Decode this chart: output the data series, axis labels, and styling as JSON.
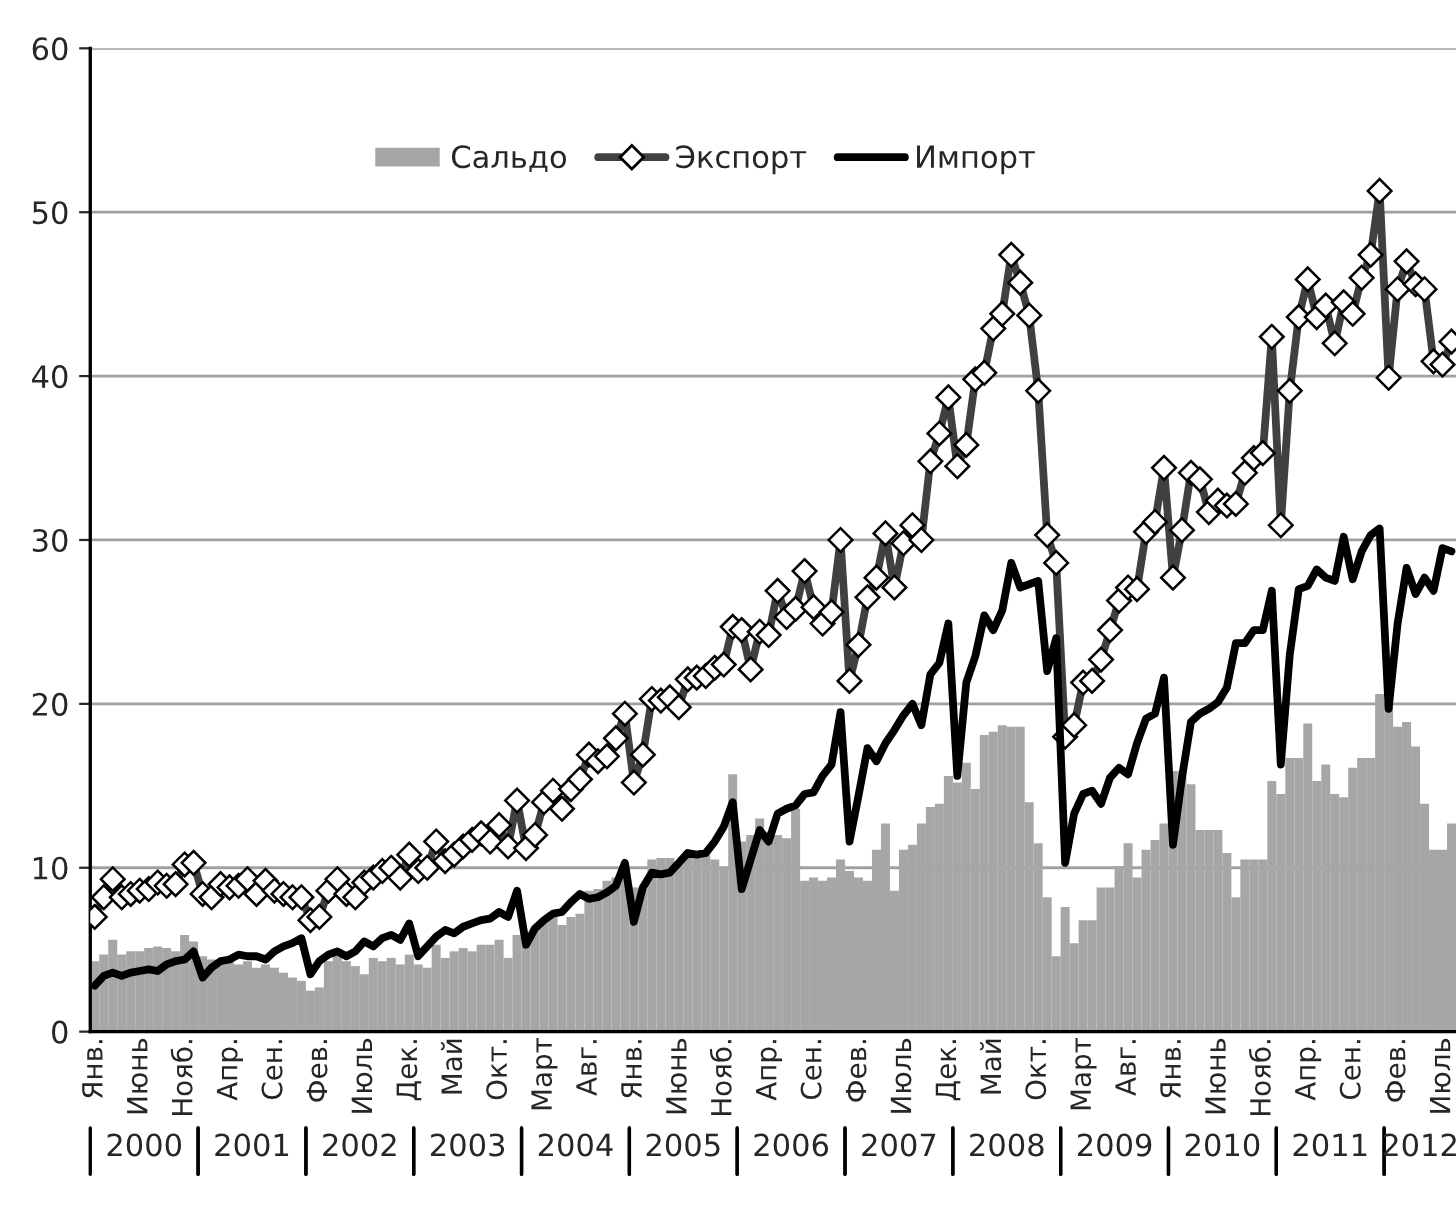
{
  "chart_data": {
    "type": "bar",
    "categories": [
      "Янв.",
      null,
      null,
      null,
      null,
      "Июнь",
      null,
      null,
      null,
      null,
      "Нояб.",
      null,
      null,
      null,
      null,
      "Апр.",
      null,
      null,
      null,
      null,
      "Сен.",
      null,
      null,
      null,
      null,
      "Фев.",
      null,
      null,
      null,
      null,
      "Июль",
      null,
      null,
      null,
      null,
      "Дек.",
      null,
      null,
      null,
      null,
      "Май",
      null,
      null,
      null,
      null,
      "Окт.",
      null,
      null,
      null,
      null,
      "Март",
      null,
      null,
      null,
      null,
      "Авг.",
      null,
      null,
      null,
      null,
      "Янв.",
      null,
      null,
      null,
      null,
      "Июнь",
      null,
      null,
      null,
      null,
      "Нояб.",
      null,
      null,
      null,
      null,
      "Апр.",
      null,
      null,
      null,
      null,
      "Сен.",
      null,
      null,
      null,
      null,
      "Фев.",
      null,
      null,
      null,
      null,
      "Июль",
      null,
      null,
      null,
      null,
      "Дек.",
      null,
      null,
      null,
      null,
      "Май",
      null,
      null,
      null,
      null,
      "Окт.",
      null,
      null,
      null,
      null,
      "Март",
      null,
      null,
      null,
      null,
      "Авг.",
      null,
      null,
      null,
      null,
      "Янв.",
      null,
      null,
      null,
      null,
      "Июнь",
      null,
      null,
      null,
      null,
      "Нояб.",
      null,
      null,
      null,
      null,
      "Апр.",
      null,
      null,
      null,
      null,
      "Сен.",
      null,
      null,
      null,
      null,
      "Фев.",
      null,
      null,
      null,
      null,
      "Июль",
      null
    ],
    "series": [
      {
        "name": "Сальдо",
        "color": "#a6a6a6",
        "values": [
          4.3,
          4.7,
          5.6,
          4.7,
          4.9,
          4.9,
          5.1,
          5.2,
          5.1,
          4.9,
          5.9,
          5.5,
          4.6,
          4.4,
          4.3,
          4.3,
          4.1,
          4.3,
          3.9,
          4.1,
          3.9,
          3.6,
          3.3,
          3.1,
          2.5,
          2.7,
          4.3,
          4.7,
          4.3,
          4.0,
          3.5,
          4.5,
          4.3,
          4.5,
          4.1,
          4.7,
          4.1,
          3.9,
          5.3,
          4.5,
          4.9,
          5.1,
          4.9,
          5.3,
          5.3,
          5.6,
          4.5,
          5.9,
          5.5,
          6.4,
          6.8,
          7.0,
          6.5,
          7.0,
          7.2,
          8.6,
          8.7,
          9.2,
          9.4,
          9.8,
          8.8,
          8.7,
          10.5,
          10.6,
          10.6,
          10.2,
          10.9,
          10.8,
          10.8,
          10.5,
          10.0,
          15.7,
          11.6,
          12.0,
          13.0,
          12.2,
          12.0,
          11.8,
          13.6,
          9.2,
          9.4,
          9.2,
          9.4,
          10.5,
          9.8,
          9.4,
          9.2,
          11.1,
          12.7,
          8.6,
          11.1,
          11.4,
          12.7,
          13.7,
          13.9,
          15.6,
          15.2,
          16.4,
          14.8,
          18.1,
          18.3,
          18.7,
          18.6,
          18.6,
          14.0,
          11.5,
          8.2,
          4.6,
          7.6,
          5.4,
          6.8,
          6.8,
          8.8,
          8.8,
          10.1,
          11.5,
          9.4,
          11.1,
          11.7,
          12.7,
          15.9,
          15.9,
          15.1,
          12.3,
          12.3,
          12.3,
          10.9,
          8.2,
          10.5,
          10.5,
          10.5,
          15.3,
          14.5,
          16.7,
          16.7,
          18.8,
          15.3,
          16.3,
          14.5,
          14.3,
          16.1,
          16.7,
          16.7,
          20.6,
          20.0,
          18.6,
          18.9,
          17.4,
          13.9,
          11.1,
          11.1,
          12.7
        ]
      },
      {
        "name": "Экспорт",
        "type": "line",
        "color": "#404040",
        "marker": "diamond",
        "values": [
          7.0,
          8.2,
          9.3,
          8.2,
          8.4,
          8.6,
          8.7,
          9.1,
          8.9,
          9.0,
          10.2,
          10.3,
          8.4,
          8.2,
          9.0,
          8.8,
          8.9,
          9.3,
          8.4,
          9.2,
          8.6,
          8.4,
          8.2,
          8.2,
          6.8,
          7.0,
          8.6,
          9.3,
          8.4,
          8.2,
          9.1,
          9.4,
          9.8,
          10.0,
          9.4,
          10.8,
          9.8,
          10.0,
          11.6,
          10.4,
          10.8,
          11.3,
          11.7,
          12.1,
          11.6,
          12.6,
          11.3,
          14.1,
          11.2,
          12.0,
          14.0,
          14.7,
          13.6,
          14.8,
          15.4,
          16.9,
          16.5,
          16.8,
          17.9,
          19.4,
          15.2,
          16.9,
          20.3,
          20.2,
          20.4,
          19.8,
          21.5,
          21.6,
          21.7,
          22.2,
          22.4,
          24.7,
          24.5,
          22.1,
          24.4,
          24.2,
          26.9,
          25.3,
          25.8,
          28.1,
          25.9,
          24.9,
          25.6,
          30.0,
          21.4,
          23.6,
          26.5,
          27.7,
          30.4,
          27.1,
          29.8,
          30.9,
          30.0,
          34.8,
          36.5,
          38.7,
          34.5,
          35.8,
          39.8,
          40.2,
          42.9,
          43.8,
          47.4,
          45.7,
          43.7,
          39.1,
          30.3,
          28.6,
          18.0,
          18.7,
          21.3,
          21.4,
          22.7,
          24.5,
          26.3,
          27.1,
          27.0,
          30.5,
          31.1,
          34.4,
          27.7,
          30.6,
          34.1,
          33.7,
          31.7,
          32.4,
          32.1,
          32.2,
          34.1,
          35.0,
          35.3,
          42.4,
          30.9,
          39.1,
          43.6,
          45.9,
          43.6,
          44.3,
          42.0,
          44.5,
          43.8,
          46.0,
          47.4,
          51.3,
          39.9,
          45.3,
          47.0,
          45.6,
          45.3,
          40.9,
          40.7,
          42.1
        ]
      },
      {
        "name": "Импорт",
        "type": "line",
        "color": "#000000",
        "values": [
          2.8,
          3.4,
          3.6,
          3.4,
          3.6,
          3.7,
          3.8,
          3.7,
          4.1,
          4.3,
          4.4,
          4.9,
          3.3,
          3.9,
          4.3,
          4.4,
          4.7,
          4.6,
          4.6,
          4.4,
          4.9,
          5.2,
          5.4,
          5.7,
          3.5,
          4.3,
          4.7,
          4.9,
          4.6,
          4.9,
          5.5,
          5.2,
          5.7,
          5.9,
          5.6,
          6.6,
          4.6,
          5.2,
          5.8,
          6.2,
          6.0,
          6.4,
          6.6,
          6.8,
          6.9,
          7.3,
          7.0,
          8.6,
          5.3,
          6.3,
          6.8,
          7.2,
          7.3,
          7.9,
          8.4,
          8.1,
          8.2,
          8.5,
          8.9,
          10.3,
          6.7,
          8.8,
          9.7,
          9.6,
          9.7,
          10.3,
          10.9,
          10.8,
          10.9,
          11.6,
          12.5,
          14.0,
          8.7,
          10.5,
          12.3,
          11.6,
          13.3,
          13.6,
          13.8,
          14.5,
          14.6,
          15.6,
          16.3,
          19.5,
          11.6,
          14.4,
          17.3,
          16.5,
          17.6,
          18.4,
          19.3,
          20.0,
          18.7,
          21.8,
          22.5,
          24.9,
          15.6,
          21.3,
          22.9,
          25.4,
          24.5,
          25.7,
          28.6,
          27.1,
          27.3,
          27.5,
          22.0,
          24.0,
          10.3,
          13.3,
          14.5,
          14.7,
          13.9,
          15.5,
          16.1,
          15.7,
          17.6,
          19.1,
          19.4,
          21.6,
          11.4,
          15.5,
          18.9,
          19.4,
          19.7,
          20.1,
          21.0,
          23.7,
          23.7,
          24.5,
          24.5,
          26.9,
          16.3,
          23.0,
          27.0,
          27.2,
          28.2,
          27.7,
          27.5,
          30.2,
          27.6,
          29.3,
          30.3,
          30.7,
          19.7,
          24.9,
          28.3,
          26.7,
          27.7,
          26.9,
          29.5,
          29.3
        ]
      }
    ],
    "ylim": [
      0,
      60
    ],
    "yticks": [
      0,
      10,
      20,
      30,
      40,
      50,
      60
    ],
    "grid": "y",
    "legend": "top",
    "annotations": [
      "2000",
      "2001",
      "2002",
      "2003",
      "2004",
      "2005",
      "2006",
      "2007",
      "2008",
      "2009",
      "2010",
      "2011",
      "2012"
    ]
  }
}
